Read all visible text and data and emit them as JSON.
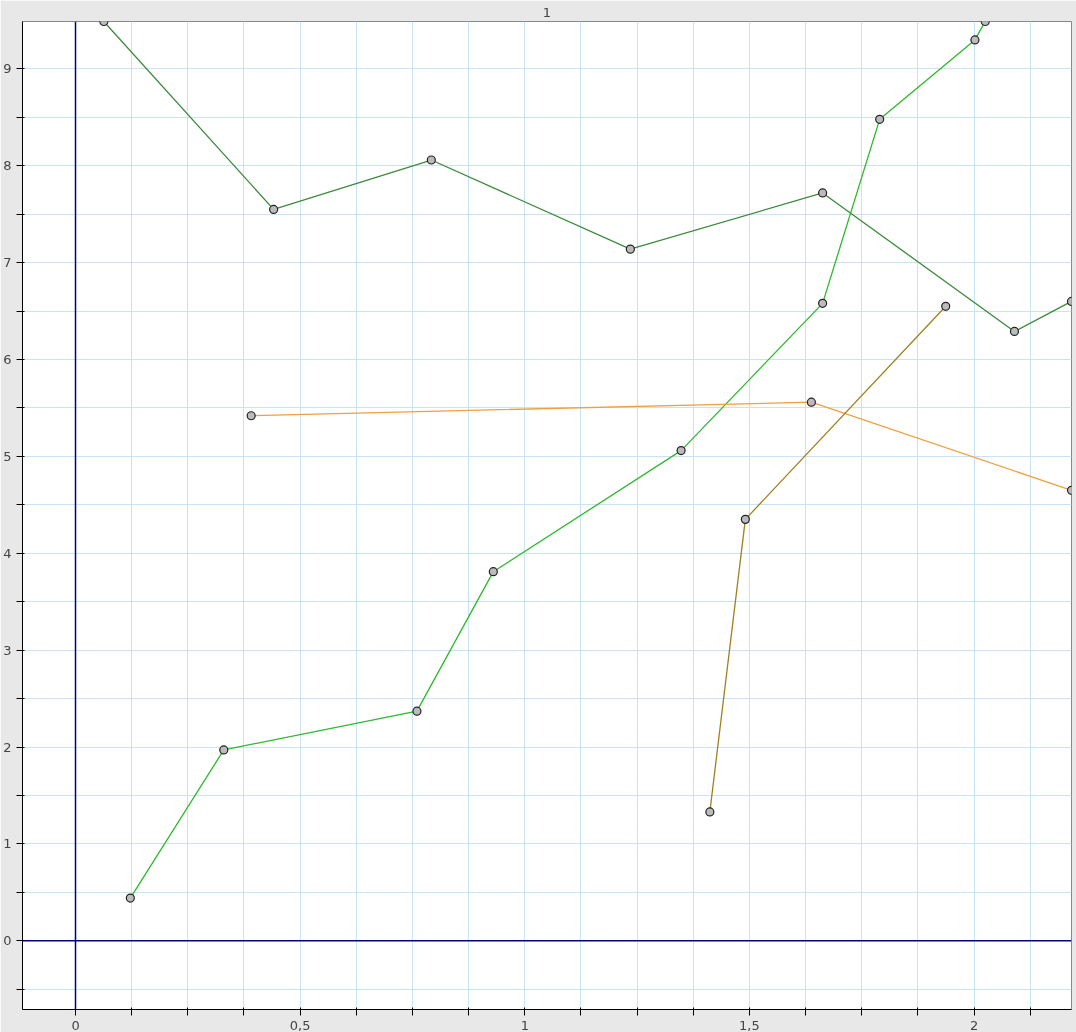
{
  "chart_data": {
    "type": "line",
    "title": "1",
    "marker": "circle",
    "grid": true,
    "xlim": [
      -0.118,
      2.217
    ],
    "ylim": [
      -0.71,
      9.49
    ],
    "xticks": [
      0,
      {
        "value": 0.125,
        "label": null
      },
      {
        "value": 0.25,
        "label": null
      },
      {
        "value": 0.375,
        "label": null
      },
      {
        "value": 0.5,
        "label": "0,5"
      },
      {
        "value": 0.625,
        "label": null
      },
      {
        "value": 0.75,
        "label": null
      },
      {
        "value": 0.875,
        "label": null
      },
      1,
      {
        "value": 1.125,
        "label": null
      },
      {
        "value": 1.25,
        "label": null
      },
      {
        "value": 1.375,
        "label": null
      },
      {
        "value": 1.5,
        "label": "1,5"
      },
      {
        "value": 1.625,
        "label": null
      },
      {
        "value": 1.75,
        "label": null
      },
      {
        "value": 1.875,
        "label": null
      },
      2,
      {
        "value": 2.125,
        "label": null
      }
    ],
    "yticks": [
      {
        "value": -0.5,
        "label": null
      },
      0,
      {
        "value": 0.5,
        "label": null
      },
      1,
      {
        "value": 1.5,
        "label": null
      },
      2,
      {
        "value": 2.5,
        "label": null
      },
      3,
      {
        "value": 3.5,
        "label": null
      },
      4,
      {
        "value": 4.5,
        "label": null
      },
      5,
      {
        "value": 5.5,
        "label": null
      },
      6,
      {
        "value": 6.5,
        "label": null
      },
      7,
      {
        "value": 7.5,
        "label": null
      },
      8,
      {
        "value": 8.5,
        "label": null
      },
      9
    ],
    "series": [
      {
        "color": "#3c8a3c",
        "x": [
          0.063,
          0.441,
          0.792,
          1.235,
          1.663,
          2.09,
          2.217
        ],
        "values": [
          9.49,
          7.55,
          8.06,
          7.14,
          7.72,
          6.29,
          6.6
        ]
      },
      {
        "color": "#2eb82e",
        "x": [
          0.122,
          0.33,
          0.76,
          0.93,
          1.348,
          1.663,
          1.79,
          2.002,
          2.025
        ],
        "values": [
          0.44,
          1.97,
          2.37,
          3.81,
          5.06,
          6.58,
          8.48,
          9.3,
          9.49
        ]
      },
      {
        "color": "#f0a040",
        "x": [
          0.391,
          1.638,
          2.217
        ],
        "values": [
          5.42,
          5.56,
          4.65
        ]
      },
      {
        "color": "#a08020",
        "x": [
          1.412,
          1.491,
          1.937
        ],
        "values": [
          1.33,
          4.35,
          6.55
        ]
      }
    ]
  }
}
